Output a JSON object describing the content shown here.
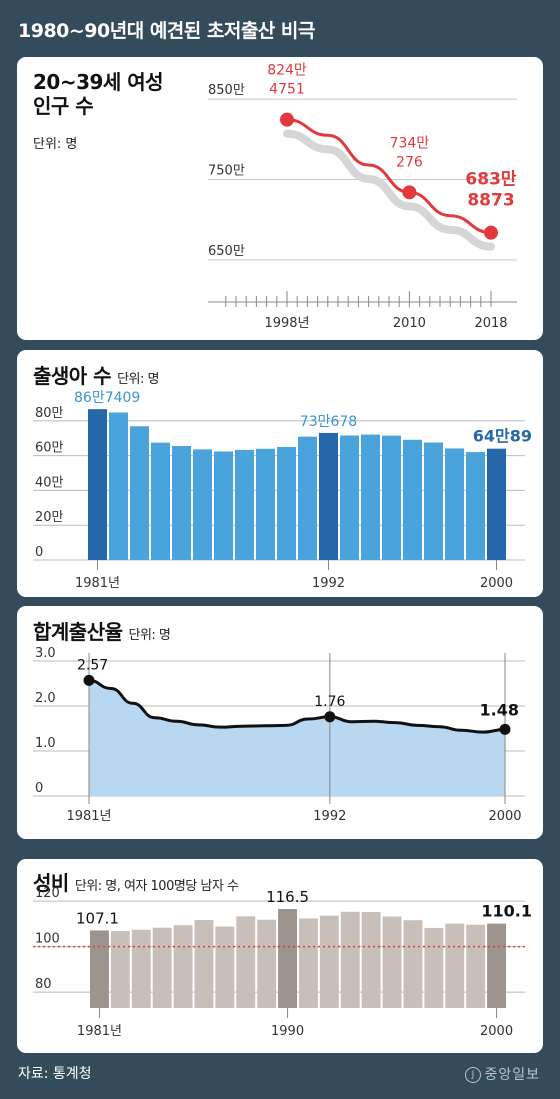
{
  "header": {
    "title": "1980~90년대 예견된 초저출산 비극"
  },
  "source": "자료: 통계청",
  "logo": "중앙일보",
  "chart_data": [
    {
      "type": "line",
      "title": "20~39세 여성 인구 수",
      "title_line1": "20~39세 여성",
      "title_line2": "인구 수",
      "unit": "단위: 명",
      "x": [
        1998,
        2002,
        2006,
        2010,
        2014,
        2018
      ],
      "values": [
        8244751,
        8050000,
        7680000,
        7340276,
        7050000,
        6838873
      ],
      "y_ticks": [
        {
          "v": 8500000,
          "label": "850만"
        },
        {
          "v": 7500000,
          "label": "750만"
        },
        {
          "v": 6500000,
          "label": "650만"
        }
      ],
      "x_labels": [
        {
          "x": 1998,
          "label": "1998년"
        },
        {
          "x": 2010,
          "label": "2010"
        },
        {
          "x": 2018,
          "label": "2018"
        }
      ],
      "annotations": [
        {
          "x": 1998,
          "l1": "824만",
          "l2": "4751"
        },
        {
          "x": 2010,
          "l1": "734만",
          "l2": "276"
        },
        {
          "x": 2018,
          "l1": "683만",
          "l2": "8873"
        }
      ],
      "color": "#e23a3c",
      "ylim": [
        6350000,
        8700000
      ]
    },
    {
      "type": "bar",
      "title": "출생아 수",
      "unit": "단위: 명",
      "categories": [
        1981,
        1982,
        1983,
        1984,
        1985,
        1986,
        1987,
        1988,
        1989,
        1990,
        1991,
        1992,
        1993,
        1994,
        1995,
        1996,
        1997,
        1998,
        1999,
        2000
      ],
      "values": [
        867409,
        848312,
        769155,
        674793,
        655489,
        636019,
        623831,
        633092,
        639431,
        649738,
        709275,
        730678,
        715826,
        721185,
        715020,
        691226,
        675394,
        641594,
        620668,
        640089
      ],
      "highlight": [
        1981,
        1992,
        2000
      ],
      "y_ticks": [
        {
          "v": 0,
          "label": "0"
        },
        {
          "v": 200000,
          "label": "20만"
        },
        {
          "v": 400000,
          "label": "40만"
        },
        {
          "v": 600000,
          "label": "60만"
        },
        {
          "v": 800000,
          "label": "80만"
        }
      ],
      "x_labels": [
        {
          "x": 1981,
          "label": "1981년"
        },
        {
          "x": 1992,
          "label": "1992"
        },
        {
          "x": 2000,
          "label": "2000"
        }
      ],
      "annotations": [
        {
          "x": 1981,
          "label": "86만7409"
        },
        {
          "x": 1992,
          "label": "73만678"
        },
        {
          "x": 2000,
          "label": "64만89"
        }
      ],
      "colors": {
        "bar": "#4ba3dc",
        "highlight": "#2468aa",
        "label_light": "#3b95d3",
        "label_dark": "#2468aa"
      },
      "ylim": [
        0,
        920000
      ]
    },
    {
      "type": "area",
      "title": "합계출산율",
      "unit": "단위: 명",
      "x": [
        1981,
        1982,
        1983,
        1984,
        1985,
        1986,
        1987,
        1988,
        1989,
        1990,
        1991,
        1992,
        1993,
        1994,
        1995,
        1996,
        1997,
        1998,
        1999,
        2000
      ],
      "values": [
        2.57,
        2.39,
        2.06,
        1.74,
        1.66,
        1.58,
        1.53,
        1.55,
        1.56,
        1.57,
        1.71,
        1.76,
        1.65,
        1.66,
        1.63,
        1.57,
        1.54,
        1.46,
        1.42,
        1.48
      ],
      "y_ticks": [
        {
          "v": 0,
          "label": "0"
        },
        {
          "v": 1,
          "label": "1.0"
        },
        {
          "v": 2,
          "label": "2.0"
        },
        {
          "v": 3,
          "label": "3.0"
        }
      ],
      "x_labels": [
        {
          "x": 1981,
          "label": "1981년"
        },
        {
          "x": 1992,
          "label": "1992"
        },
        {
          "x": 2000,
          "label": "2000"
        }
      ],
      "annotations": [
        {
          "x": 1981,
          "label": "2.57"
        },
        {
          "x": 1992,
          "label": "1.76"
        },
        {
          "x": 2000,
          "label": "1.48"
        }
      ],
      "colors": {
        "fill": "#b8d7f1",
        "line": "#111111"
      },
      "ylim": [
        0,
        3.0
      ]
    },
    {
      "type": "bar",
      "title": "성비",
      "unit": "단위: 명, 여자 100명당 남자 수",
      "categories": [
        1981,
        1982,
        1983,
        1984,
        1985,
        1986,
        1987,
        1988,
        1989,
        1990,
        1991,
        1992,
        1993,
        1994,
        1995,
        1996,
        1997,
        1998,
        1999,
        2000
      ],
      "values": [
        107.1,
        106.8,
        107.4,
        108.3,
        109.4,
        111.7,
        108.8,
        113.3,
        111.8,
        116.5,
        112.4,
        113.6,
        115.3,
        115.2,
        113.2,
        111.6,
        108.2,
        110.1,
        109.6,
        110.1
      ],
      "highlight": [
        1981,
        1990,
        2000
      ],
      "y_ticks": [
        {
          "v": 80,
          "label": "80"
        },
        {
          "v": 100,
          "label": "100"
        },
        {
          "v": 120,
          "label": "120"
        }
      ],
      "x_labels": [
        {
          "x": 1981,
          "label": "1981년"
        },
        {
          "x": 1990,
          "label": "1990"
        },
        {
          "x": 2000,
          "label": "2000"
        }
      ],
      "annotations": [
        {
          "x": 1981,
          "label": "107.1"
        },
        {
          "x": 1990,
          "label": "116.5"
        },
        {
          "x": 2000,
          "label": "110.1"
        }
      ],
      "reference_line": 100,
      "colors": {
        "bar": "#c9bfb9",
        "highlight": "#9d948d",
        "ref": "#e23a3c"
      },
      "ylim": [
        73,
        124
      ]
    }
  ]
}
